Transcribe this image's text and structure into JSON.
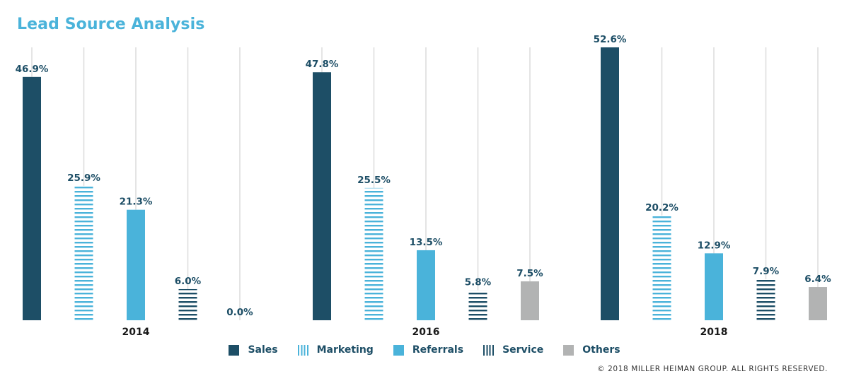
{
  "page": {
    "title": "Lead Source Analysis",
    "footer": "© 2018 MILLER HEIMAN GROUP. ALL RIGHTS RESERVED."
  },
  "colors": {
    "title": "#4ab3da",
    "sales": "#1d4e66",
    "marketing": "#4ab3da",
    "referrals": "#4ab3da",
    "service": "#1d4e66",
    "others": "#b2b3b3",
    "label": "#1d4e66",
    "gridline": "#dcdcdc"
  },
  "legend": [
    {
      "name": "Sales",
      "swatch": "solid",
      "color": "#1d4e66"
    },
    {
      "name": "Marketing",
      "swatch": "vertical-stripes",
      "color": "#4ab3da"
    },
    {
      "name": "Referrals",
      "swatch": "solid",
      "color": "#4ab3da"
    },
    {
      "name": "Service",
      "swatch": "vertical-stripes",
      "color": "#1d4e66"
    },
    {
      "name": "Others",
      "swatch": "solid",
      "color": "#b2b3b3"
    }
  ],
  "chart_data": {
    "type": "bar",
    "title": "Lead Source Analysis",
    "xlabel": "",
    "ylabel": "",
    "ylim": [
      0,
      52.6
    ],
    "grid": false,
    "legend_position": "bottom",
    "categories": [
      "2014",
      "2016",
      "2018"
    ],
    "series": [
      {
        "name": "Sales",
        "values": [
          46.9,
          47.8,
          52.6
        ],
        "labels": [
          "46.9%",
          "47.8%",
          "52.6%"
        ],
        "pattern": "solid",
        "color": "#1d4e66"
      },
      {
        "name": "Marketing",
        "values": [
          25.9,
          25.5,
          20.2
        ],
        "labels": [
          "25.9%",
          "25.5%",
          "20.2%"
        ],
        "pattern": "stripes",
        "color": "#4ab3da"
      },
      {
        "name": "Referrals",
        "values": [
          21.3,
          13.5,
          12.9
        ],
        "labels": [
          "21.3%",
          "13.5%",
          "12.9%"
        ],
        "pattern": "solid",
        "color": "#4ab3da"
      },
      {
        "name": "Service",
        "values": [
          6.0,
          5.8,
          7.9
        ],
        "labels": [
          "6.0%",
          "5.8%",
          "7.9%"
        ],
        "pattern": "stripes",
        "color": "#1d4e66"
      },
      {
        "name": "Others",
        "values": [
          0.0,
          7.5,
          6.4
        ],
        "labels": [
          "0.0%",
          "7.5%",
          "6.4%"
        ],
        "pattern": "solid",
        "color": "#b2b3b3"
      }
    ]
  }
}
